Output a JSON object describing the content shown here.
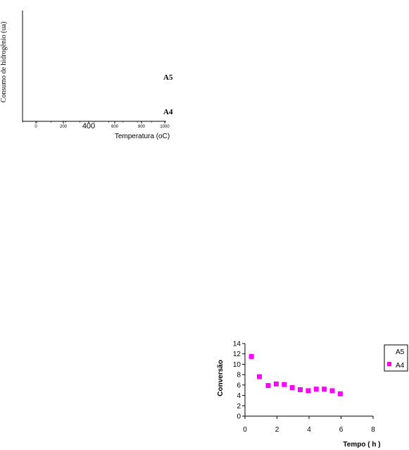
{
  "chart_data": [
    {
      "type": "line",
      "xlabel": "Temperatura (oC)",
      "ylabel": "Consumo de hidrogênio (ua)",
      "x_ticks": [
        "0",
        "200",
        "400",
        "600",
        "800",
        "1000"
      ],
      "xlim": [
        -100,
        1000
      ],
      "series_labels": [
        "A5",
        "A4"
      ],
      "series": []
    },
    {
      "type": "scatter",
      "xlabel": "Tempo ( h )",
      "ylabel": "Conversão",
      "xlim": [
        0,
        8
      ],
      "ylim": [
        0,
        14
      ],
      "x_ticks": [
        "0",
        "2",
        "4",
        "6",
        "8"
      ],
      "y_ticks": [
        "0",
        "2",
        "4",
        "6",
        "8",
        "10",
        "12",
        "14"
      ],
      "legend_position": "right",
      "series": [
        {
          "name": "A5",
          "color": "#ffffff",
          "x": [],
          "y": []
        },
        {
          "name": "A4",
          "color": "#ff00ff",
          "x": [
            0.4,
            0.9,
            1.45,
            1.95,
            2.45,
            2.95,
            3.45,
            3.95,
            4.45,
            4.95,
            5.45,
            5.95
          ],
          "y": [
            11.5,
            7.6,
            5.9,
            6.2,
            6.1,
            5.5,
            5.1,
            4.9,
            5.2,
            5.2,
            4.9,
            4.3
          ]
        }
      ]
    }
  ]
}
